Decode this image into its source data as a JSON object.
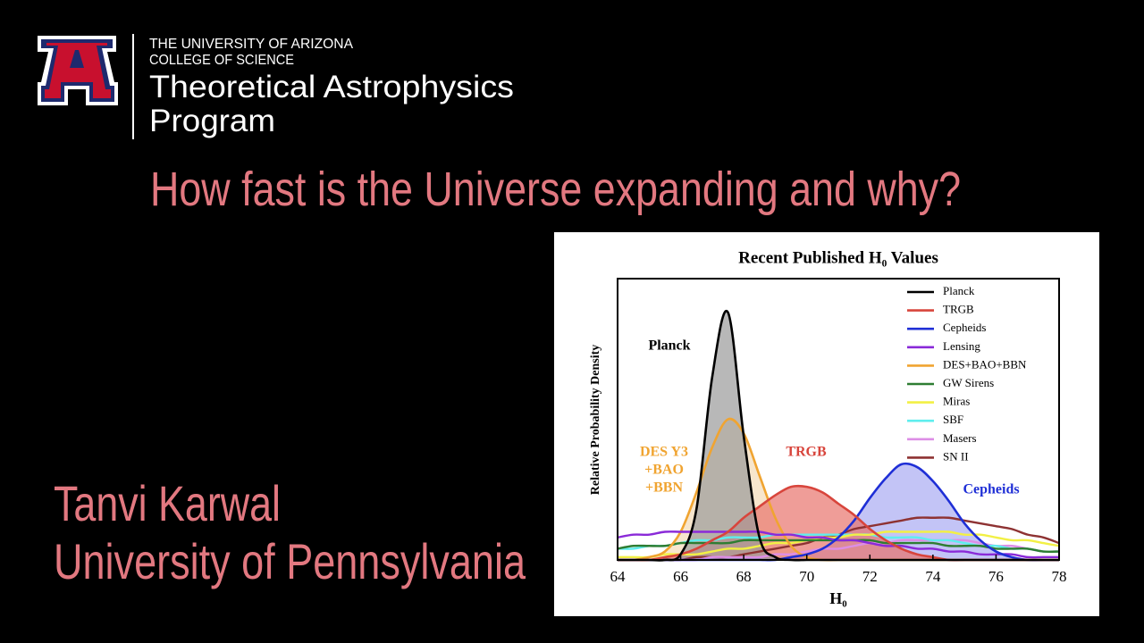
{
  "header": {
    "university": "THE UNIVERSITY OF ARIZONA",
    "college": "COLLEGE OF SCIENCE",
    "program_line1": "Theoretical Astrophysics",
    "program_line2": "Program"
  },
  "headline": "How fast is the Universe expanding and why?",
  "speaker": {
    "name": "Tanvi Karwal",
    "affiliation": "University of Pennsylvania"
  },
  "chart_data": {
    "type": "line",
    "title": "Recent Published H₀ Values",
    "x_label": "H₀",
    "y_label": "Relative Probability Density",
    "x": [
      64,
      64.5,
      65,
      65.5,
      66,
      66.5,
      67,
      67.5,
      68,
      68.5,
      69,
      69.5,
      70,
      70.5,
      71,
      71.5,
      72,
      72.5,
      73,
      73.5,
      74,
      74.5,
      75,
      75.5,
      76,
      76.5,
      77,
      77.5,
      78
    ],
    "xlim": [
      64,
      78
    ],
    "xticks": [
      64,
      66,
      68,
      70,
      72,
      74,
      76,
      78
    ],
    "ylim": [
      0,
      1
    ],
    "legend": "upper-right",
    "series": [
      {
        "name": "Planck",
        "color": "#000000",
        "fill": "#9a9a9a",
        "values": [
          0,
          0,
          0,
          0,
          0.02,
          0.18,
          0.65,
          0.88,
          0.44,
          0.08,
          0.01,
          0,
          0,
          0,
          0,
          0,
          0,
          0,
          0,
          0,
          0,
          0,
          0,
          0,
          0,
          0,
          0,
          0,
          0
        ]
      },
      {
        "name": "TRGB",
        "color": "#d8453c",
        "fill": "#e8736c",
        "values": [
          0,
          0,
          0,
          0.01,
          0.02,
          0.04,
          0.07,
          0.1,
          0.15,
          0.19,
          0.23,
          0.26,
          0.26,
          0.24,
          0.2,
          0.16,
          0.11,
          0.07,
          0.04,
          0.02,
          0.01,
          0,
          0,
          0,
          0,
          0,
          0,
          0,
          0
        ]
      },
      {
        "name": "Cepheids",
        "color": "#1f2fd6",
        "fill": "#a9abf2",
        "values": [
          0,
          0,
          0,
          0,
          0,
          0,
          0,
          0,
          0,
          0,
          0,
          0.01,
          0.02,
          0.04,
          0.08,
          0.14,
          0.22,
          0.29,
          0.34,
          0.33,
          0.28,
          0.21,
          0.13,
          0.07,
          0.03,
          0.01,
          0,
          0,
          0
        ]
      },
      {
        "name": "Lensing",
        "color": "#8a2ad8",
        "values": [
          0.08,
          0.09,
          0.09,
          0.1,
          0.1,
          0.1,
          0.1,
          0.1,
          0.1,
          0.1,
          0.09,
          0.09,
          0.08,
          0.08,
          0.07,
          0.07,
          0.06,
          0.05,
          0.05,
          0.04,
          0.04,
          0.03,
          0.03,
          0.02,
          0.02,
          0.02,
          0.01,
          0.01,
          0.01
        ]
      },
      {
        "name": "DES+BAO+BBN",
        "color": "#f0a431",
        "fill": "#f3dcb8",
        "values": [
          0,
          0,
          0.01,
          0.03,
          0.1,
          0.24,
          0.4,
          0.5,
          0.45,
          0.3,
          0.15,
          0.05,
          0.01,
          0,
          0,
          0,
          0,
          0,
          0,
          0,
          0,
          0,
          0,
          0,
          0,
          0,
          0,
          0,
          0
        ]
      },
      {
        "name": "GW Sirens",
        "color": "#2e7d32",
        "values": [
          0.04,
          0.05,
          0.05,
          0.05,
          0.06,
          0.06,
          0.06,
          0.06,
          0.07,
          0.07,
          0.07,
          0.07,
          0.07,
          0.07,
          0.07,
          0.07,
          0.07,
          0.06,
          0.06,
          0.06,
          0.06,
          0.05,
          0.05,
          0.05,
          0.04,
          0.04,
          0.04,
          0.03,
          0.03
        ]
      },
      {
        "name": "Miras",
        "color": "#f2f045",
        "values": [
          0.01,
          0.01,
          0.01,
          0.02,
          0.02,
          0.02,
          0.03,
          0.04,
          0.04,
          0.05,
          0.06,
          0.06,
          0.07,
          0.08,
          0.08,
          0.09,
          0.09,
          0.1,
          0.1,
          0.1,
          0.1,
          0.1,
          0.09,
          0.09,
          0.08,
          0.07,
          0.07,
          0.06,
          0.05
        ]
      },
      {
        "name": "SBF",
        "color": "#5eeeee",
        "values": [
          0.04,
          0.04,
          0.05,
          0.05,
          0.06,
          0.07,
          0.07,
          0.08,
          0.08,
          0.08,
          0.09,
          0.09,
          0.09,
          0.09,
          0.09,
          0.09,
          0.09,
          0.08,
          0.08,
          0.08,
          0.07,
          0.07,
          0.06,
          0.05,
          0.05,
          0.04,
          0.04,
          0.03,
          0.03
        ]
      },
      {
        "name": "Masers",
        "color": "#dd8ee6",
        "values": [
          0,
          0,
          0,
          0,
          0,
          0,
          0.01,
          0.01,
          0.01,
          0.01,
          0.02,
          0.02,
          0.03,
          0.04,
          0.04,
          0.05,
          0.06,
          0.06,
          0.07,
          0.07,
          0.07,
          0.07,
          0.07,
          0.06,
          0.05,
          0.05,
          0.04,
          0.03,
          0.03
        ]
      },
      {
        "name": "SN II",
        "color": "#8e3232",
        "values": [
          0,
          0,
          0,
          0,
          0,
          0.01,
          0.01,
          0.01,
          0.02,
          0.03,
          0.04,
          0.05,
          0.06,
          0.08,
          0.09,
          0.11,
          0.12,
          0.13,
          0.14,
          0.15,
          0.15,
          0.15,
          0.14,
          0.13,
          0.12,
          0.11,
          0.09,
          0.08,
          0.06
        ]
      }
    ],
    "annotations": [
      {
        "lines": [
          "Planck"
        ],
        "color": "#000000"
      },
      {
        "lines": [
          "DES Y3",
          "+BAO",
          "+BBN"
        ],
        "color": "#f0a431"
      },
      {
        "lines": [
          "TRGB"
        ],
        "color": "#d8453c"
      },
      {
        "lines": [
          "Cepheids"
        ],
        "color": "#1f2fd6"
      }
    ]
  }
}
